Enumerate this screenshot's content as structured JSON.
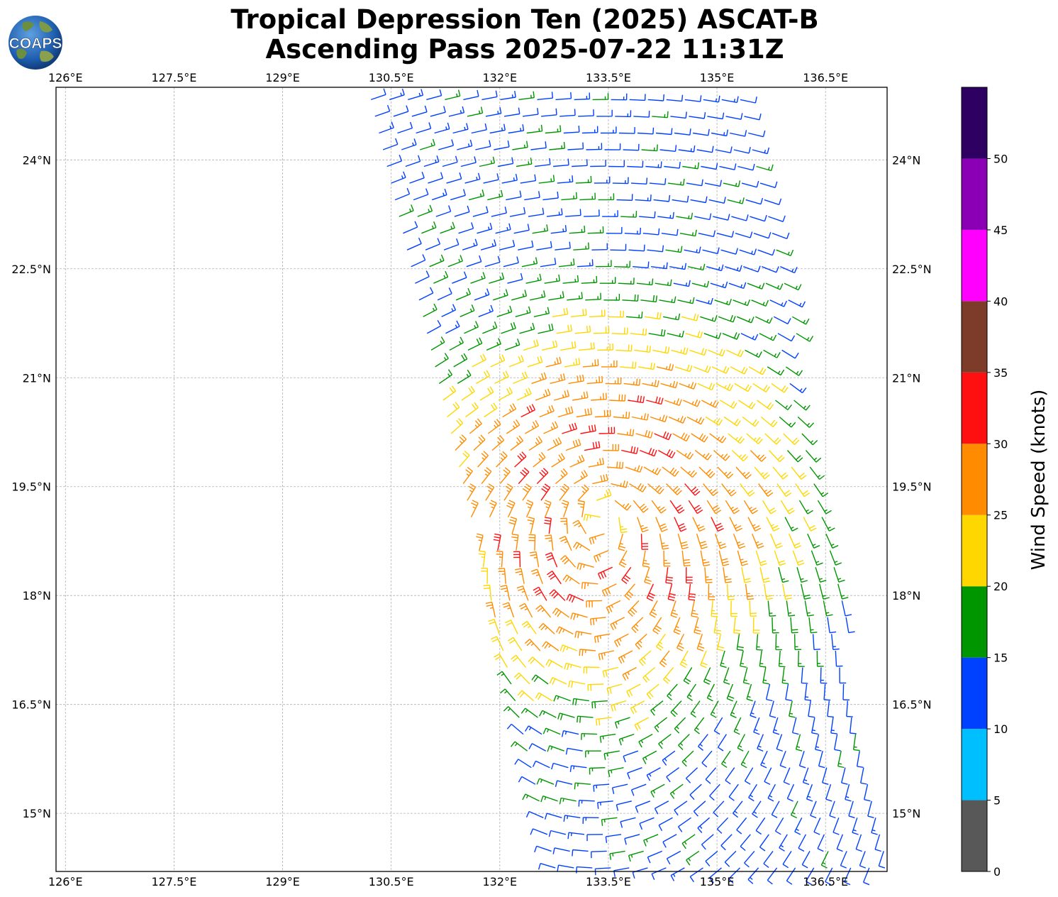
{
  "header": {
    "title_line1": "Tropical Depression Ten (2025) ASCAT-B",
    "title_line2": "Ascending Pass 2025-07-22 11:31Z",
    "logo_text": "COAPS"
  },
  "map": {
    "lon_range": [
      125.87,
      137.35
    ],
    "lat_range": [
      14.2,
      25.0
    ],
    "lon_ticks": [
      "126°E",
      "127.5°E",
      "129°E",
      "130.5°E",
      "132°E",
      "133.5°E",
      "135°E",
      "136.5°E"
    ],
    "lon_tick_values": [
      126,
      127.5,
      129,
      130.5,
      132,
      133.5,
      135,
      136.5
    ],
    "lat_ticks": [
      "24°N",
      "22.5°N",
      "21°N",
      "19.5°N",
      "18°N",
      "16.5°N",
      "15°N"
    ],
    "lat_tick_values": [
      24,
      22.5,
      21,
      19.5,
      18,
      16.5,
      15
    ],
    "gridlines": true,
    "swath": {
      "top_lat": 25.0,
      "top_left_lon": 130.1,
      "top_right_lon": 135.5,
      "bottom_lat": 14.2,
      "bottom_left_lon": 132.7,
      "bottom_right_lon": 137.4
    },
    "data_gap": {
      "lat_above": 18.95,
      "lon_left_of": 132.05
    },
    "marker": "wind-barb",
    "storm_center": {
      "lon": 133.4,
      "lat": 19.2
    }
  },
  "colorbar": {
    "label": "Wind Speed (knots)",
    "ticks": [
      "0",
      "5",
      "10",
      "15",
      "20",
      "25",
      "30",
      "35",
      "40",
      "45",
      "50"
    ],
    "bins": [
      {
        "min": 0,
        "max": 5,
        "color": "#585858"
      },
      {
        "min": 5,
        "max": 10,
        "color": "#00bfff"
      },
      {
        "min": 10,
        "max": 15,
        "color": "#0040ff"
      },
      {
        "min": 15,
        "max": 20,
        "color": "#009600"
      },
      {
        "min": 20,
        "max": 25,
        "color": "#ffd700"
      },
      {
        "min": 25,
        "max": 30,
        "color": "#ff8c00"
      },
      {
        "min": 30,
        "max": 35,
        "color": "#ff1010"
      },
      {
        "min": 35,
        "max": 40,
        "color": "#7d3b2a"
      },
      {
        "min": 40,
        "max": 45,
        "color": "#ff00ff"
      },
      {
        "min": 45,
        "max": 50,
        "color": "#8b00b4"
      },
      {
        "min": 50,
        "max": 55,
        "color": "#2d0062"
      }
    ]
  }
}
